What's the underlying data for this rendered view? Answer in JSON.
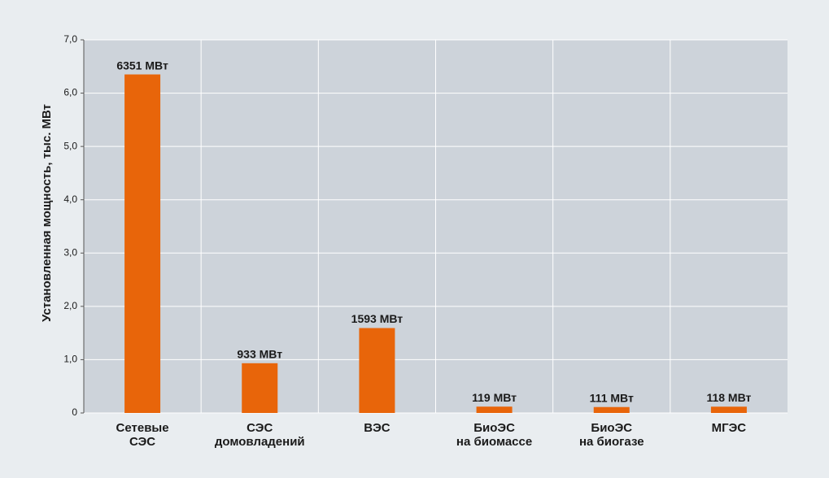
{
  "chart_data": {
    "type": "bar",
    "y_label": "Установленная мощность, тыс. МВт",
    "categories": [
      "Сетевые\nСЭС",
      "СЭС\nдомовладений",
      "ВЭС",
      "БиоЭС\nна биомассе",
      "БиоЭС\nна биогазе",
      "МГЭС"
    ],
    "values": [
      6.351,
      0.933,
      1.593,
      0.119,
      0.111,
      0.118
    ],
    "value_labels": [
      "6351 МВт",
      "933 МВт",
      "1593 МВт",
      "119 МВт",
      "111 МВт",
      "118 МВт"
    ],
    "color": "#e8650a",
    "ylim": [
      0,
      7
    ],
    "yticks": [
      0,
      {
        "value": 1,
        "label": "1,0"
      },
      {
        "value": 2,
        "label": "2,0"
      },
      {
        "value": 3,
        "label": "3,0"
      },
      {
        "value": 4,
        "label": "4,0"
      },
      {
        "value": 5,
        "label": "5,0"
      },
      {
        "value": 6,
        "label": "6,0"
      },
      {
        "value": 7,
        "label": "7,0"
      }
    ],
    "grid": true
  }
}
